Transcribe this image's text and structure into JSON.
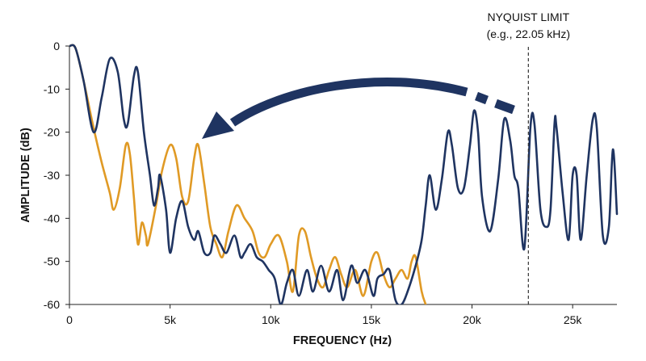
{
  "chart_data": {
    "type": "line",
    "xlabel": "FREQUENCY (Hz)",
    "ylabel": "AMPLITUDE (dB)",
    "xlim": [
      0,
      27200
    ],
    "ylim": [
      -60,
      0
    ],
    "x_ticks": [
      {
        "value": 0,
        "label": "0"
      },
      {
        "value": 5000,
        "label": "5k"
      },
      {
        "value": 10000,
        "label": "10k"
      },
      {
        "value": 15000,
        "label": "15k"
      },
      {
        "value": 20000,
        "label": "20k"
      },
      {
        "value": 25000,
        "label": "25k"
      }
    ],
    "y_ticks": [
      {
        "value": 0,
        "label": "0"
      },
      {
        "value": -10,
        "label": "-10"
      },
      {
        "value": -20,
        "label": "-20"
      },
      {
        "value": -30,
        "label": "-30"
      },
      {
        "value": -40,
        "label": "-40"
      },
      {
        "value": -50,
        "label": "-50"
      },
      {
        "value": -60,
        "label": "-60"
      }
    ],
    "grid": false,
    "legend": "none",
    "series": [
      {
        "color": "#1f3461",
        "points": [
          [
            0,
            0
          ],
          [
            300,
            -0.5
          ],
          [
            700,
            -8
          ],
          [
            1200,
            -20
          ],
          [
            1600,
            -12
          ],
          [
            2000,
            -3
          ],
          [
            2400,
            -6
          ],
          [
            2700,
            -17
          ],
          [
            2900,
            -18
          ],
          [
            3200,
            -7
          ],
          [
            3400,
            -6
          ],
          [
            3700,
            -20
          ],
          [
            4000,
            -30
          ],
          [
            4200,
            -37
          ],
          [
            4400,
            -33
          ],
          [
            4500,
            -30
          ],
          [
            4800,
            -38
          ],
          [
            5000,
            -48
          ],
          [
            5300,
            -40
          ],
          [
            5600,
            -36
          ],
          [
            5900,
            -42
          ],
          [
            6200,
            -45
          ],
          [
            6400,
            -43
          ],
          [
            6700,
            -48
          ],
          [
            7000,
            -48
          ],
          [
            7200,
            -44
          ],
          [
            7500,
            -46
          ],
          [
            7800,
            -48
          ],
          [
            8200,
            -44
          ],
          [
            8500,
            -49
          ],
          [
            8700,
            -48
          ],
          [
            9000,
            -46
          ],
          [
            9300,
            -49
          ],
          [
            9600,
            -50
          ],
          [
            9900,
            -52
          ],
          [
            10200,
            -54
          ],
          [
            10500,
            -60
          ],
          [
            10800,
            -55
          ],
          [
            11100,
            -52
          ],
          [
            11400,
            -58
          ],
          [
            11800,
            -52
          ],
          [
            12100,
            -57
          ],
          [
            12500,
            -51
          ],
          [
            12900,
            -57
          ],
          [
            13300,
            -52
          ],
          [
            13600,
            -59
          ],
          [
            14000,
            -51
          ],
          [
            14300,
            -55
          ],
          [
            14700,
            -52
          ],
          [
            15100,
            -58
          ],
          [
            15300,
            -54
          ],
          [
            15600,
            -53
          ],
          [
            15900,
            -52
          ],
          [
            16200,
            -59
          ],
          [
            16500,
            -60
          ],
          [
            16800,
            -57
          ],
          [
            17200,
            -51
          ],
          [
            17500,
            -45
          ],
          [
            17700,
            -37
          ],
          [
            17900,
            -30
          ],
          [
            18200,
            -38
          ],
          [
            18500,
            -31
          ],
          [
            18800,
            -20
          ],
          [
            19000,
            -23
          ],
          [
            19300,
            -33
          ],
          [
            19600,
            -33
          ],
          [
            19900,
            -23
          ],
          [
            20100,
            -15
          ],
          [
            20300,
            -20
          ],
          [
            20500,
            -35
          ],
          [
            20900,
            -43
          ],
          [
            21300,
            -31
          ],
          [
            21600,
            -17
          ],
          [
            21900,
            -22
          ],
          [
            22100,
            -30
          ],
          [
            22300,
            -33
          ],
          [
            22600,
            -47
          ],
          [
            22900,
            -19
          ],
          [
            23100,
            -18
          ],
          [
            23400,
            -38
          ],
          [
            23700,
            -42
          ],
          [
            23900,
            -38
          ],
          [
            24100,
            -18
          ],
          [
            24200,
            -19
          ],
          [
            24500,
            -34
          ],
          [
            24800,
            -45
          ],
          [
            25000,
            -30
          ],
          [
            25200,
            -30
          ],
          [
            25400,
            -45
          ],
          [
            25700,
            -30
          ],
          [
            26000,
            -17
          ],
          [
            26200,
            -19
          ],
          [
            26500,
            -44
          ],
          [
            26800,
            -42
          ],
          [
            27000,
            -24
          ],
          [
            27200,
            -39
          ]
        ]
      },
      {
        "color": "#e09a25",
        "points": [
          [
            0,
            0
          ],
          [
            300,
            -0.5
          ],
          [
            700,
            -8
          ],
          [
            1200,
            -19
          ],
          [
            1600,
            -27
          ],
          [
            2000,
            -34
          ],
          [
            2200,
            -38
          ],
          [
            2500,
            -33
          ],
          [
            2800,
            -23
          ],
          [
            3000,
            -25
          ],
          [
            3200,
            -35
          ],
          [
            3400,
            -46
          ],
          [
            3600,
            -41
          ],
          [
            3800,
            -44
          ],
          [
            3900,
            -46
          ],
          [
            4300,
            -37
          ],
          [
            4600,
            -29
          ],
          [
            5000,
            -23
          ],
          [
            5300,
            -26
          ],
          [
            5600,
            -35
          ],
          [
            5900,
            -36
          ],
          [
            6200,
            -26
          ],
          [
            6400,
            -23
          ],
          [
            6700,
            -32
          ],
          [
            7000,
            -42
          ],
          [
            7300,
            -46
          ],
          [
            7600,
            -49
          ],
          [
            7900,
            -43
          ],
          [
            8300,
            -37
          ],
          [
            8700,
            -40
          ],
          [
            9100,
            -43
          ],
          [
            9400,
            -48
          ],
          [
            9700,
            -49
          ],
          [
            10000,
            -46
          ],
          [
            10400,
            -44
          ],
          [
            10800,
            -50
          ],
          [
            11100,
            -57
          ],
          [
            11400,
            -44
          ],
          [
            11700,
            -43
          ],
          [
            12000,
            -49
          ],
          [
            12300,
            -54
          ],
          [
            12600,
            -56
          ],
          [
            12900,
            -52
          ],
          [
            13200,
            -49
          ],
          [
            13500,
            -53
          ],
          [
            13800,
            -56
          ],
          [
            14200,
            -52
          ],
          [
            14600,
            -58
          ],
          [
            15000,
            -50
          ],
          [
            15300,
            -48
          ],
          [
            15600,
            -53
          ],
          [
            15900,
            -56
          ],
          [
            16200,
            -54
          ],
          [
            16500,
            -52
          ],
          [
            16800,
            -54
          ],
          [
            17000,
            -50
          ],
          [
            17200,
            -49
          ],
          [
            17500,
            -57
          ],
          [
            17700,
            -60
          ]
        ]
      }
    ],
    "annotations": {
      "nyquist_label_line1": "NYQUIST LIMIT",
      "nyquist_label_line2": "(e.g., 22.05 kHz)",
      "nyquist_x": 22800
    },
    "arrow_color": "#1f3461"
  }
}
